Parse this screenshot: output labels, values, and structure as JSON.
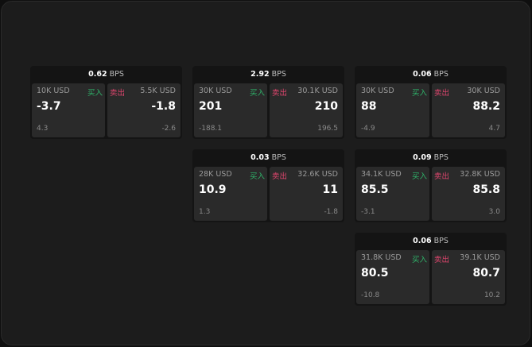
{
  "unit": "BPS",
  "buy_label": "买入",
  "sell_label": "卖出",
  "colors": {
    "buy": "#2fb36a",
    "sell": "#e0466e"
  },
  "cards": [
    {
      "bps": "0.62",
      "buy": {
        "size": "10K USD",
        "price": "-3.7",
        "change": "4.3"
      },
      "sell": {
        "size": "5.5K USD",
        "price": "-1.8",
        "change": "-2.6"
      }
    },
    {
      "bps": "2.92",
      "buy": {
        "size": "30K USD",
        "price": "201",
        "change": "-188.1"
      },
      "sell": {
        "size": "30.1K USD",
        "price": "210",
        "change": "196.5"
      }
    },
    {
      "bps": "0.06",
      "buy": {
        "size": "30K USD",
        "price": "88",
        "change": "-4.9"
      },
      "sell": {
        "size": "30K USD",
        "price": "88.2",
        "change": "4.7"
      }
    },
    {
      "bps": "0.03",
      "buy": {
        "size": "28K USD",
        "price": "10.9",
        "change": "1.3"
      },
      "sell": {
        "size": "32.6K USD",
        "price": "11",
        "change": "-1.8"
      }
    },
    {
      "bps": "0.09",
      "buy": {
        "size": "34.1K USD",
        "price": "85.5",
        "change": "-3.1"
      },
      "sell": {
        "size": "32.8K USD",
        "price": "85.8",
        "change": "3.0"
      }
    },
    {
      "bps": "0.06",
      "buy": {
        "size": "31.8K USD",
        "price": "80.5",
        "change": "-10.8"
      },
      "sell": {
        "size": "39.1K USD",
        "price": "80.7",
        "change": "10.2"
      }
    }
  ]
}
